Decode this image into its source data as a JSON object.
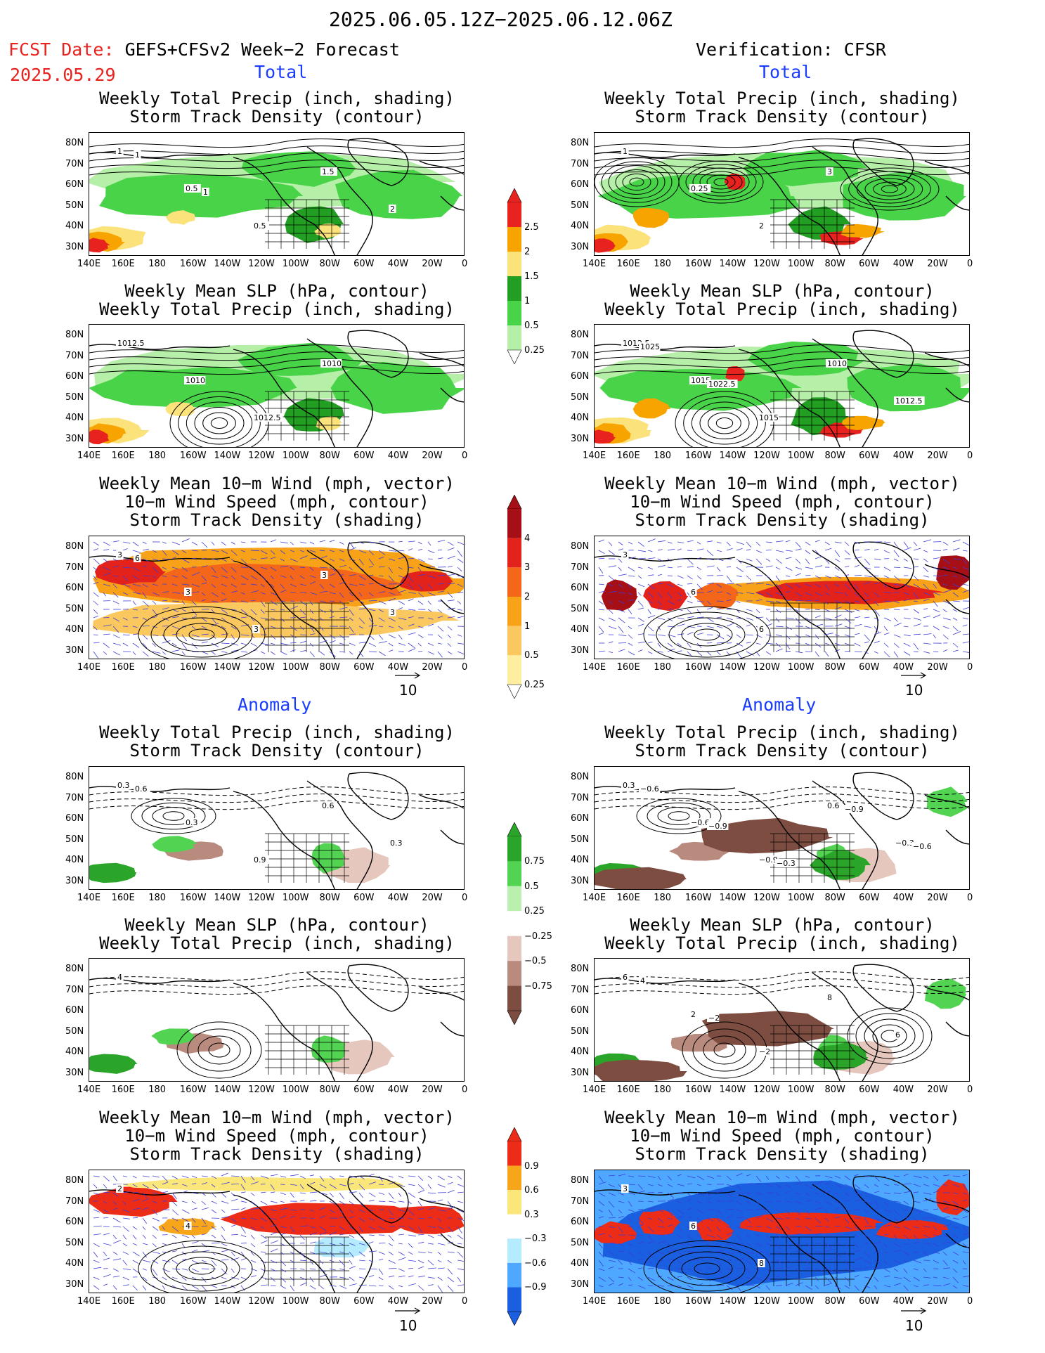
{
  "header": {
    "period": "2025.06.05.12Z−2025.06.12.06Z",
    "fcst_label": "FCST Date:",
    "fcst_model": "GEFS+CFSv2 Week−2 Forecast",
    "fcst_date": "2025.05.29",
    "verification": "Verification: CFSR"
  },
  "sections": {
    "total": "Total",
    "anomaly": "Anomaly"
  },
  "panel_titles": {
    "precip_storm": [
      "Weekly Total Precip (inch, shading)",
      "Storm Track Density (contour)"
    ],
    "slp_precip": [
      "Weekly Mean SLP (hPa, contour)",
      "Weekly Total Precip (inch, shading)"
    ],
    "wind_storm": [
      "Weekly Mean 10−m Wind (mph, vector)",
      "10−m Wind Speed (mph, contour)",
      "Storm Track Density (shading)"
    ]
  },
  "axes": {
    "lat_ticks": [
      "80N",
      "70N",
      "60N",
      "50N",
      "40N",
      "30N"
    ],
    "lon_ticks": [
      "140E",
      "160E",
      "180",
      "160W",
      "140W",
      "120W",
      "100W",
      "80W",
      "60W",
      "40W",
      "20W",
      "0"
    ]
  },
  "colorbars": {
    "precip_total": {
      "labels": [
        "2.5",
        "2",
        "1.5",
        "1",
        "0.5",
        "0.25"
      ],
      "colors": [
        "#e8231f",
        "#f7a400",
        "#fce27a",
        "#229e22",
        "#49d349",
        "#b6f0a8"
      ]
    },
    "storm_total": {
      "labels": [
        "4",
        "3",
        "2",
        "1",
        "0.5",
        "0.25"
      ],
      "colors": [
        "#a50f15",
        "#e3221c",
        "#f4661a",
        "#f8a21a",
        "#fbc860",
        "#fdeea0"
      ]
    },
    "precip_anom": {
      "labels": [
        "0.75",
        "0.5",
        "0.25",
        "−0.25",
        "−0.5",
        "−0.75"
      ],
      "colors": [
        "#2aa52a",
        "#52d352",
        "#b9f0b0",
        "#ffffff",
        "#e6c7bd",
        "#b98a7e",
        "#7c4d40"
      ]
    },
    "storm_anom": {
      "labels": [
        "0.9",
        "0.6",
        "0.3",
        "−0.3",
        "−0.6",
        "−0.9"
      ],
      "colors": [
        "#ed2c18",
        "#f7a51a",
        "#fbe67a",
        "#ffffff",
        "#b5ebff",
        "#4fa8ff",
        "#1a5fe0"
      ]
    }
  },
  "vector_ref": "10",
  "contour_labels": {
    "fc_total_precip": [
      "1",
      "0.5",
      "0.5",
      "1.5",
      "2",
      "1",
      "1"
    ],
    "fc_total_slp": [
      "1012.5",
      "1010",
      "1012.5",
      "1010"
    ],
    "fc_total_wind": [
      "3",
      "3",
      "3",
      "3",
      "3",
      "6"
    ],
    "vf_total_precip": [
      "1",
      "0.25",
      "2",
      "3"
    ],
    "vf_total_slp": [
      "1012.5",
      "1015",
      "1015",
      "1010",
      "1012.5",
      "1025",
      "1022.5"
    ],
    "vf_total_wind": [
      "3",
      "6",
      "6"
    ],
    "fc_anom_precip": [
      "0.3",
      "0.3",
      "0.9",
      "0.6",
      "0.3",
      "0.6"
    ],
    "fc_anom_slp": [
      "4"
    ],
    "fc_anom_wind": [
      "2",
      "4"
    ],
    "vf_anom_precip": [
      "0.3",
      "−0.6",
      "−0.9",
      "0.6",
      "−0.3",
      "−0.6",
      "−0.9",
      "−0.3",
      "−0.9",
      "−0.6"
    ],
    "vf_anom_slp": [
      "6",
      "2",
      "−2",
      "8",
      "6",
      "4",
      "−2"
    ],
    "vf_anom_wind": [
      "3",
      "6",
      "8"
    ]
  }
}
